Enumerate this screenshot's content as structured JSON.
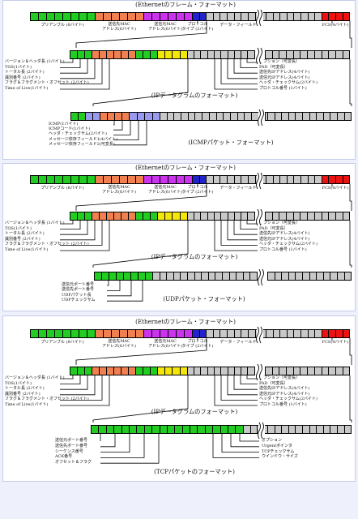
{
  "colors": {
    "green": "#22cc22",
    "orange": "#f08050",
    "magenta": "#cc33ee",
    "blue": "#2222cc",
    "gray": "#c8c8c8",
    "red": "#ee1111",
    "yellow": "#f5e60a",
    "lavender": "#9999ee"
  },
  "ethernet": {
    "title": "(Ethernetのフレーム・フォーマット)",
    "preamble": "プリアンブル (8バイト)",
    "dst_mac_1": "送信先MAC",
    "dst_mac_2": "アドレス(6バイト)",
    "src_mac_1": "送信元MAC",
    "src_mac_2": "アドレス(6バイト)",
    "protocol_1": "プロトコル",
    "protocol_2": "タイプ (2バイト)",
    "data_field": "データ・フィールド",
    "fcs": "FCS(4バイト)"
  },
  "ip": {
    "title": "(IPデータグラムのフォーマット)",
    "left_labels": [
      "バージョン＆ヘッダ長 (1バイト)",
      "TOS(1バイト)",
      "トータル長 (2バイト)",
      "識別番号 (2バイト)",
      "フラグ＆フラグメント・オフセット (2バイト)",
      "Time of Live(1バイト)"
    ],
    "right_labels": [
      "オプション（可変長）",
      "PAD（可変長）",
      "送信先IPアドレス(4バイト)",
      "送信元IPアドレス(4バイト)",
      "ヘッダ・チェックサム(2バイト)",
      "プロトコル番号 (1バイト)"
    ]
  },
  "icmp": {
    "title": "(ICMPパケット・フォーマット)",
    "labels": [
      "ICMP(1バイト)",
      "ICMPコード(1バイト)",
      "ヘッダ・チェックサム(2バイト)",
      "メッセージ依存フィールド1(4バイト)",
      "メッセージ依存フィールド2(可変長)"
    ]
  },
  "udp": {
    "title": "(UDPパケット・フォーマット)",
    "labels": [
      "送信元ポート番号",
      "送信先ポート番号",
      "UDPパケット長",
      "UDPチェックサム"
    ]
  },
  "tcp": {
    "title": "(TCPパケットのフォーマット)",
    "left_labels": [
      "送信元ポート番号",
      "送信先ポート番号",
      "シーケンス番号",
      "ACK番号",
      "オフセット＆フラグ"
    ],
    "right_labels": [
      "オプション",
      "Urgentポインタ",
      "TCPチェックサム",
      "ウインドウ・サイズ"
    ]
  }
}
